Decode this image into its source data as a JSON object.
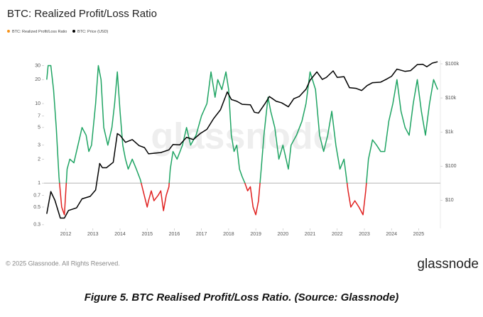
{
  "chart_data": {
    "type": "line",
    "title": "BTC: Realized Profit/Loss Ratio",
    "watermark": "glassnode",
    "xlim": [
      2011.2,
      2025.8
    ],
    "xticks": [
      2012,
      2013,
      2014,
      2015,
      2016,
      2017,
      2018,
      2019,
      2020,
      2021,
      2022,
      2023,
      2024,
      2025
    ],
    "ylim": [
      0.27,
      35
    ],
    "yticks": [
      0.3,
      0.5,
      0.7,
      1,
      2,
      3,
      5,
      7,
      10,
      20,
      30
    ],
    "y2lim": [
      1.5,
      127000
    ],
    "y2ticks": [
      {
        "value": 10,
        "label": "$10"
      },
      {
        "value": 100,
        "label": "$100"
      },
      {
        "value": 1000,
        "label": "$1k"
      },
      {
        "value": 10000,
        "label": "$10k"
      },
      {
        "value": 100000,
        "label": "$100k"
      }
    ],
    "log_scale": true,
    "threshold": 1,
    "series": [
      {
        "name": "BTC: Realized Profit/Loss Ratio",
        "color": "#f7931a",
        "above_color": "#1fa463",
        "below_color": "#e0201f",
        "x": [
          2011.3,
          2011.35,
          2011.45,
          2011.55,
          2011.65,
          2011.75,
          2011.85,
          2011.95,
          2012.05,
          2012.15,
          2012.3,
          2012.45,
          2012.6,
          2012.75,
          2012.85,
          2012.95,
          2013.1,
          2013.2,
          2013.3,
          2013.4,
          2013.55,
          2013.7,
          2013.8,
          2013.9,
          2014.0,
          2014.1,
          2014.2,
          2014.3,
          2014.45,
          2014.6,
          2014.75,
          2014.85,
          2015.0,
          2015.05,
          2015.15,
          2015.25,
          2015.4,
          2015.5,
          2015.6,
          2015.7,
          2015.8,
          2015.85,
          2015.95,
          2016.1,
          2016.3,
          2016.45,
          2016.6,
          2016.8,
          2017.0,
          2017.2,
          2017.35,
          2017.5,
          2017.6,
          2017.75,
          2017.9,
          2018.0,
          2018.1,
          2018.2,
          2018.3,
          2018.4,
          2018.5,
          2018.6,
          2018.7,
          2018.8,
          2018.9,
          2019.0,
          2019.1,
          2019.2,
          2019.3,
          2019.45,
          2019.55,
          2019.7,
          2019.85,
          2020.0,
          2020.2,
          2020.3,
          2020.5,
          2020.7,
          2020.85,
          2021.0,
          2021.2,
          2021.35,
          2021.5,
          2021.65,
          2021.8,
          2021.95,
          2022.1,
          2022.25,
          2022.4,
          2022.5,
          2022.65,
          2022.8,
          2022.95,
          2023.05,
          2023.15,
          2023.3,
          2023.45,
          2023.6,
          2023.75,
          2023.9,
          2024.05,
          2024.2,
          2024.35,
          2024.5,
          2024.65,
          2024.8,
          2024.95,
          2025.1,
          2025.25,
          2025.4,
          2025.55,
          2025.7
        ],
        "values": [
          20,
          30,
          30,
          15,
          5,
          1.2,
          0.5,
          0.4,
          1.5,
          2,
          1.8,
          3,
          5,
          4,
          2.5,
          3,
          10,
          30,
          20,
          5,
          3,
          5,
          10,
          25,
          8,
          3,
          2,
          1.5,
          2,
          1.5,
          1.1,
          0.8,
          0.5,
          0.6,
          0.8,
          0.6,
          0.7,
          0.8,
          0.45,
          0.7,
          0.9,
          1.5,
          2.5,
          2,
          3,
          5,
          3,
          4,
          7,
          10,
          25,
          12,
          20,
          15,
          25,
          15,
          4,
          2.5,
          3,
          1.5,
          1.2,
          1.0,
          0.8,
          0.9,
          0.5,
          0.4,
          0.6,
          1.5,
          4,
          12,
          8,
          5,
          2,
          3,
          1.5,
          3,
          4,
          6,
          10,
          25,
          15,
          4,
          2.5,
          4,
          8,
          3,
          1.5,
          2,
          0.8,
          0.5,
          0.6,
          0.5,
          0.4,
          0.8,
          2,
          3.5,
          3,
          2.5,
          2.5,
          6,
          10,
          20,
          8,
          5,
          4,
          10,
          20,
          8,
          4,
          10,
          20,
          15
        ]
      },
      {
        "name": "BTC: Price (USD)",
        "color": "#000000",
        "axis": "y2",
        "x": [
          2011.3,
          2011.45,
          2011.6,
          2011.8,
          2011.95,
          2012.1,
          2012.4,
          2012.6,
          2012.9,
          2013.1,
          2013.25,
          2013.35,
          2013.5,
          2013.75,
          2013.9,
          2014.0,
          2014.2,
          2014.45,
          2014.7,
          2014.9,
          2015.05,
          2015.5,
          2015.8,
          2015.95,
          2016.2,
          2016.45,
          2016.7,
          2016.95,
          2017.2,
          2017.45,
          2017.7,
          2017.95,
          2018.1,
          2018.3,
          2018.5,
          2018.8,
          2018.95,
          2019.1,
          2019.35,
          2019.5,
          2019.75,
          2019.95,
          2020.2,
          2020.4,
          2020.6,
          2020.85,
          2021.0,
          2021.25,
          2021.45,
          2021.6,
          2021.85,
          2022.0,
          2022.25,
          2022.45,
          2022.7,
          2022.9,
          2023.1,
          2023.3,
          2023.6,
          2023.8,
          2024.0,
          2024.2,
          2024.5,
          2024.7,
          2024.95,
          2025.15,
          2025.3,
          2025.5,
          2025.7
        ],
        "values": [
          4,
          18,
          10,
          3,
          3,
          5,
          6,
          11,
          13,
          20,
          120,
          90,
          90,
          130,
          900,
          800,
          500,
          600,
          400,
          350,
          230,
          250,
          300,
          430,
          420,
          700,
          600,
          900,
          1200,
          2500,
          4500,
          15000,
          9000,
          8000,
          6500,
          6300,
          3800,
          3600,
          7000,
          11000,
          8000,
          7200,
          5500,
          9500,
          11000,
          18000,
          33000,
          58000,
          35000,
          40000,
          62000,
          40000,
          42000,
          20000,
          19000,
          16500,
          23000,
          28000,
          29000,
          35000,
          43000,
          70000,
          60000,
          63000,
          95000,
          97000,
          82000,
          105000,
          115000
        ]
      }
    ]
  },
  "footer": {
    "copyright": "© 2025 Glassnode. All Rights Reserved.",
    "logo": "glassnode"
  },
  "caption": "Figure 5. BTC Realised Profit/Loss Ratio. (Source: Glassnode)"
}
